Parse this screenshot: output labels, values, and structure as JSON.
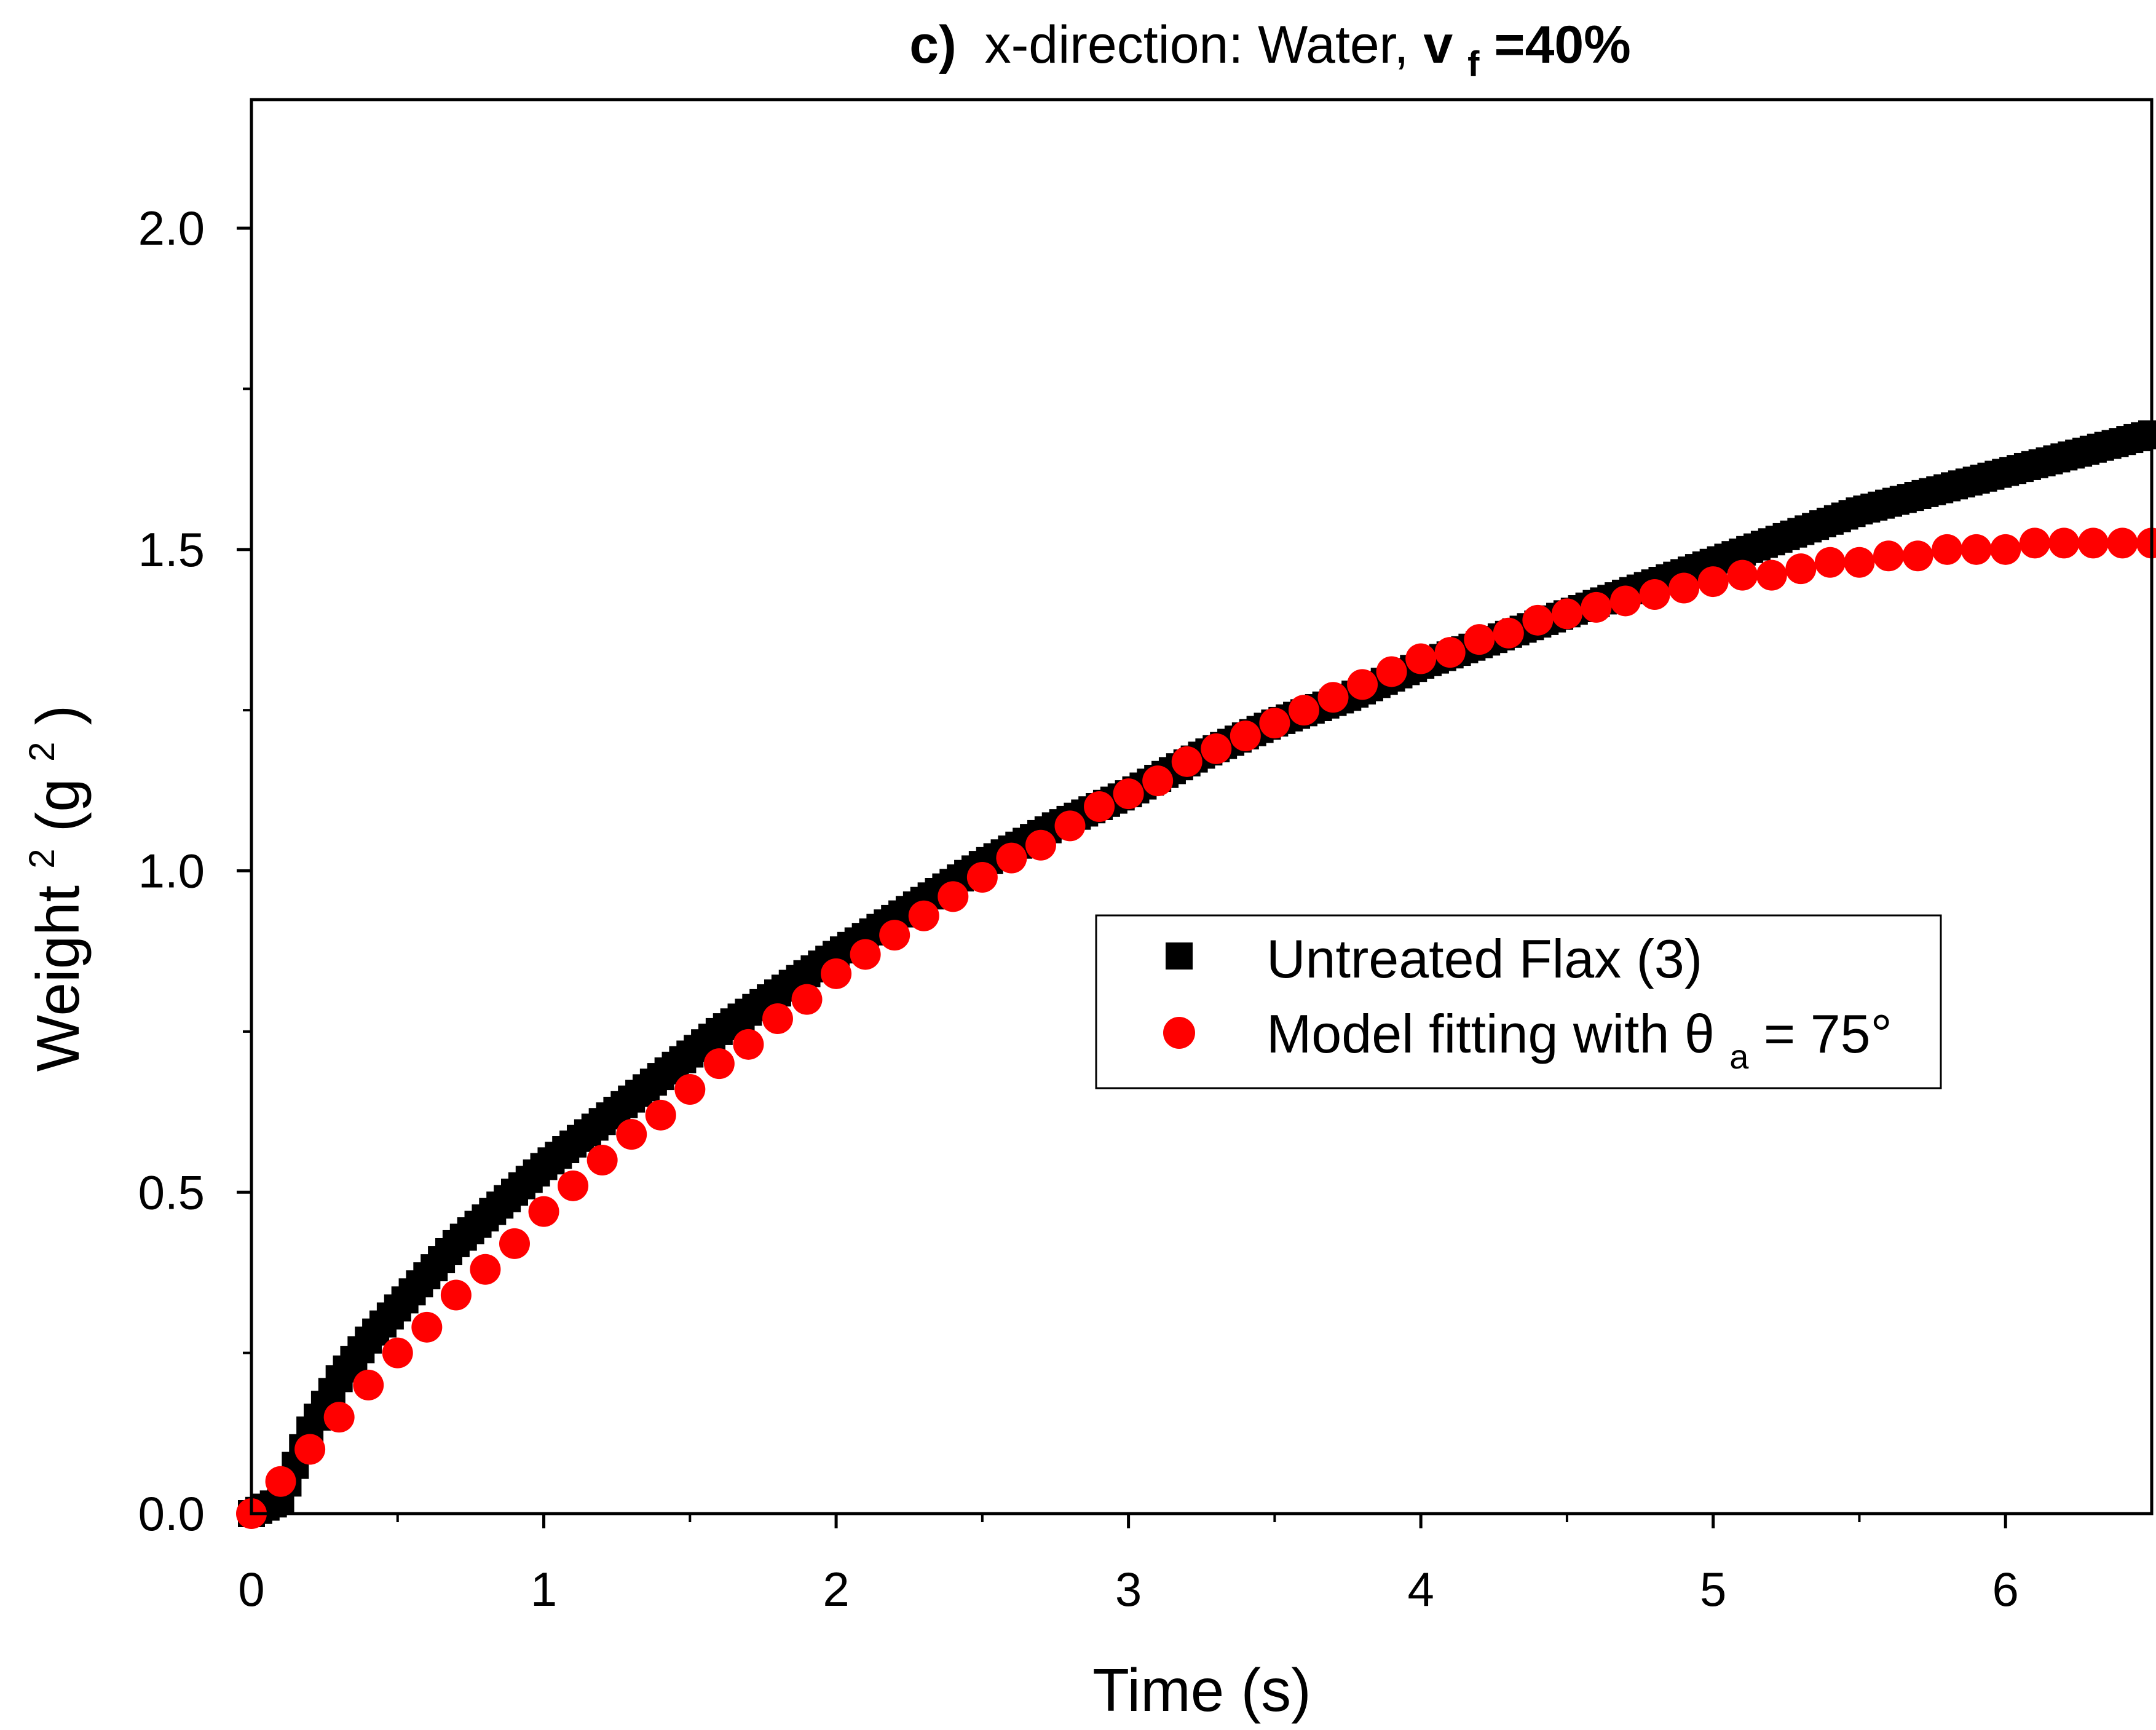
{
  "chart_data": {
    "type": "scatter",
    "title_prefix": "c)",
    "title_main": "x-direction: Water, ",
    "title_var": "v",
    "title_sub": "f",
    "title_value": "=40%",
    "xlabel": "Time (s)",
    "ylabel_main": "Weight",
    "ylabel_sup": "2",
    "ylabel_unit_open": "(g",
    "ylabel_unit_sup": "2",
    "ylabel_unit_close": ")",
    "xlim": [
      0,
      6.5
    ],
    "ylim": [
      0,
      2.2
    ],
    "xticks": [
      0,
      1,
      2,
      3,
      4,
      5,
      6
    ],
    "xtick_labels": [
      "0",
      "1",
      "2",
      "3",
      "4",
      "5",
      "6"
    ],
    "yticks": [
      0,
      0.5,
      1.0,
      1.5,
      2.0
    ],
    "ytick_labels": [
      "0.0",
      "0.5",
      "1.0",
      "1.5",
      "2.0"
    ],
    "grid": false,
    "legend_position": "center-right",
    "series": [
      {
        "name": "Untreated Flax (3)",
        "marker": "square",
        "color": "#000000",
        "x": [
          0.0,
          0.1,
          0.2,
          0.3,
          0.4,
          0.5,
          0.6,
          0.7,
          0.8,
          0.9,
          1.0,
          1.2,
          1.4,
          1.6,
          1.8,
          2.0,
          2.25,
          2.5,
          2.75,
          3.0,
          3.25,
          3.5,
          3.75,
          4.0,
          4.25,
          4.5,
          4.75,
          5.0,
          5.25,
          5.5,
          5.75,
          6.0,
          6.25,
          6.5
        ],
        "y": [
          0.0,
          0.02,
          0.13,
          0.21,
          0.27,
          0.32,
          0.37,
          0.42,
          0.46,
          0.5,
          0.54,
          0.61,
          0.68,
          0.75,
          0.81,
          0.87,
          0.94,
          1.01,
          1.07,
          1.12,
          1.18,
          1.23,
          1.27,
          1.32,
          1.36,
          1.4,
          1.44,
          1.48,
          1.52,
          1.56,
          1.59,
          1.62,
          1.65,
          1.68
        ]
      },
      {
        "name": "Model fitting with θa= 75°",
        "legend_text_main": "Model fitting with ",
        "legend_text_theta": "θ",
        "legend_text_sub": "a",
        "legend_text_tail": "= 75°",
        "marker": "circle",
        "color": "#ff0000",
        "x": [
          0.0,
          0.1,
          0.2,
          0.3,
          0.4,
          0.5,
          0.6,
          0.7,
          0.8,
          0.9,
          1.0,
          1.1,
          1.2,
          1.3,
          1.4,
          1.5,
          1.6,
          1.7,
          1.8,
          1.9,
          2.0,
          2.1,
          2.2,
          2.3,
          2.4,
          2.5,
          2.6,
          2.7,
          2.8,
          2.9,
          3.0,
          3.1,
          3.2,
          3.3,
          3.4,
          3.5,
          3.6,
          3.7,
          3.8,
          3.9,
          4.0,
          4.1,
          4.2,
          4.3,
          4.4,
          4.5,
          4.6,
          4.7,
          4.8,
          4.9,
          5.0,
          5.1,
          5.2,
          5.3,
          5.4,
          5.5,
          5.6,
          5.7,
          5.8,
          5.9,
          6.0,
          6.1,
          6.2,
          6.3,
          6.4,
          6.5
        ],
        "y": [
          0.0,
          0.05,
          0.1,
          0.15,
          0.2,
          0.25,
          0.29,
          0.34,
          0.38,
          0.42,
          0.47,
          0.51,
          0.55,
          0.59,
          0.62,
          0.66,
          0.7,
          0.73,
          0.77,
          0.8,
          0.84,
          0.87,
          0.9,
          0.93,
          0.96,
          0.99,
          1.02,
          1.04,
          1.07,
          1.1,
          1.12,
          1.14,
          1.17,
          1.19,
          1.21,
          1.23,
          1.25,
          1.27,
          1.29,
          1.31,
          1.33,
          1.34,
          1.36,
          1.37,
          1.39,
          1.4,
          1.41,
          1.42,
          1.43,
          1.44,
          1.45,
          1.46,
          1.46,
          1.47,
          1.48,
          1.48,
          1.49,
          1.49,
          1.5,
          1.5,
          1.5,
          1.51,
          1.51,
          1.51,
          1.51,
          1.51
        ]
      }
    ]
  }
}
